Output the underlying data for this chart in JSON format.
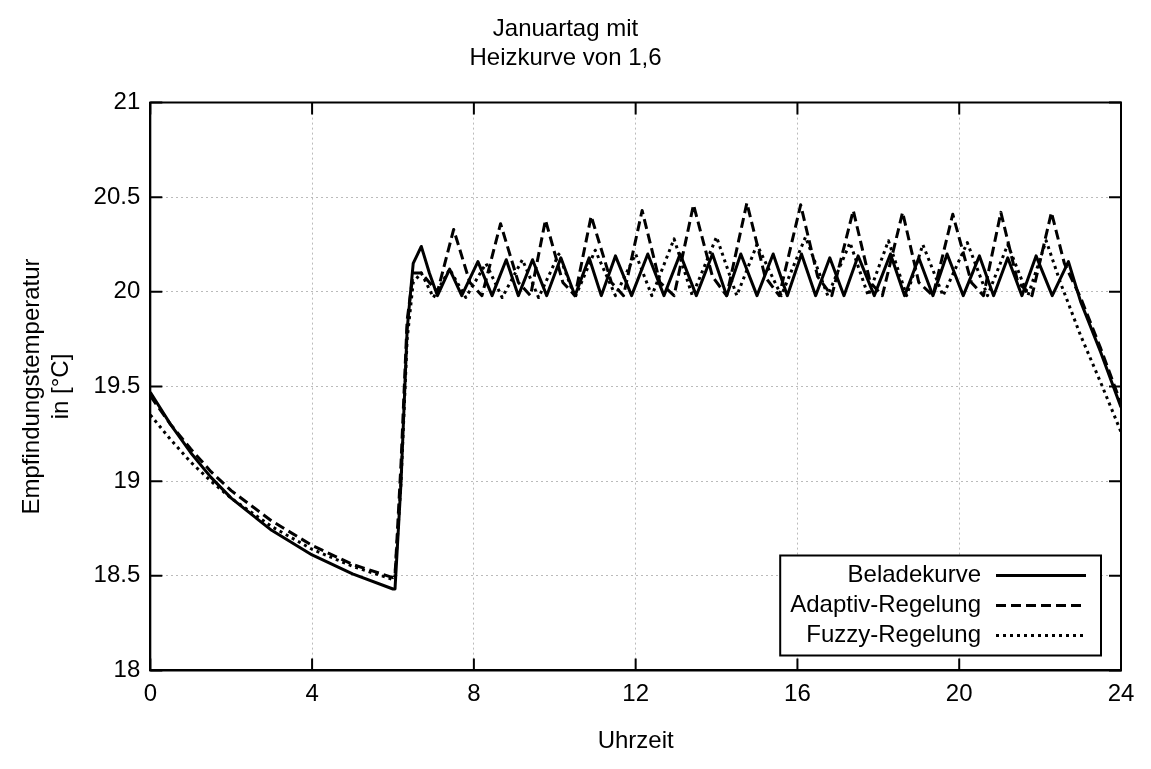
{
  "chart_data": {
    "type": "line",
    "title": "Januartag mit\nHeizkurve von 1,6",
    "xlabel": "Uhrzeit",
    "ylabel": "Empfindungstemperatur\nin [°C]",
    "xlim": [
      0,
      24
    ],
    "xticks": [
      0,
      4,
      8,
      12,
      16,
      20,
      24
    ],
    "ylim": [
      18,
      21
    ],
    "yticks": [
      18,
      18.5,
      19,
      19.5,
      20,
      20.5,
      21
    ],
    "grid": true,
    "legend": "bottom right",
    "marker": "none",
    "series": [
      {
        "name": "Beladekurve",
        "color": "#000000",
        "line_style": "solid",
        "x": [
          0,
          0.5,
          1,
          1.5,
          2,
          3,
          4,
          5,
          6,
          6.05,
          6.2,
          6.35,
          6.5,
          6.7,
          6.9,
          7.1,
          7.4,
          7.7,
          8.1,
          8.45,
          8.8,
          9.1,
          9.45,
          9.8,
          10.15,
          10.5,
          10.85,
          11.15,
          11.5,
          11.9,
          12.3,
          12.7,
          13.1,
          13.5,
          13.9,
          14.25,
          14.6,
          15,
          15.4,
          15.75,
          16.1,
          16.45,
          16.8,
          17.15,
          17.5,
          17.9,
          18.3,
          18.65,
          19,
          19.35,
          19.7,
          20.1,
          20.5,
          20.85,
          21.2,
          21.55,
          21.9,
          22.3,
          22.7,
          23,
          23.5,
          24
        ],
        "values": [
          19.47,
          19.3,
          19.15,
          19.02,
          18.91,
          18.74,
          18.61,
          18.51,
          18.43,
          18.43,
          19.0,
          19.8,
          20.15,
          20.24,
          20.1,
          19.98,
          20.12,
          19.98,
          20.16,
          19.98,
          20.17,
          19.98,
          20.17,
          19.98,
          20.18,
          19.98,
          20.18,
          19.98,
          20.19,
          19.98,
          20.2,
          19.98,
          20.2,
          19.98,
          20.2,
          19.98,
          20.2,
          19.98,
          20.2,
          19.98,
          20.2,
          19.98,
          20.18,
          19.98,
          20.19,
          19.98,
          20.2,
          19.98,
          20.18,
          19.98,
          20.2,
          19.98,
          20.19,
          19.98,
          20.18,
          19.98,
          20.19,
          19.98,
          20.16,
          19.95,
          19.68,
          19.39
        ]
      },
      {
        "name": "Adaptiv-Regelung",
        "color": "#000000",
        "line_style": "dashed",
        "x": [
          0,
          0.5,
          1,
          1.5,
          2,
          3,
          4,
          5,
          6,
          6.05,
          6.2,
          6.35,
          6.5,
          6.7,
          6.9,
          7.1,
          7.5,
          7.9,
          8.2,
          8.66,
          9.1,
          9.4,
          9.77,
          10.2,
          10.5,
          10.9,
          11.4,
          11.7,
          12.16,
          12.6,
          12.95,
          13.43,
          13.9,
          14.25,
          14.75,
          15.2,
          15.55,
          16.08,
          16.5,
          16.85,
          17.38,
          17.8,
          18.1,
          18.6,
          19.0,
          19.35,
          19.84,
          20.3,
          20.6,
          21.03,
          21.45,
          21.8,
          22.28,
          22.6,
          23,
          23.5,
          24
        ],
        "values": [
          19.45,
          19.3,
          19.17,
          19.05,
          18.95,
          18.79,
          18.66,
          18.56,
          18.49,
          18.5,
          19.1,
          19.85,
          20.1,
          20.1,
          20.05,
          20.0,
          20.33,
          20.05,
          19.98,
          20.36,
          20.05,
          19.98,
          20.38,
          20.05,
          19.98,
          20.4,
          20.05,
          19.98,
          20.43,
          20.05,
          19.98,
          20.46,
          20.08,
          19.98,
          20.47,
          20.08,
          19.98,
          20.46,
          20.08,
          19.98,
          20.43,
          20.05,
          19.98,
          20.42,
          20.05,
          19.98,
          20.41,
          20.05,
          19.98,
          20.42,
          20.05,
          19.98,
          20.42,
          20.15,
          19.97,
          19.7,
          19.41
        ]
      },
      {
        "name": "Fuzzy-Regelung",
        "color": "#000000",
        "line_style": "dotted",
        "x": [
          0,
          0.5,
          1,
          1.5,
          2,
          3,
          4,
          5,
          6,
          6.05,
          6.2,
          6.35,
          6.5,
          6.7,
          7.0,
          7.4,
          7.8,
          8.3,
          8.7,
          9.2,
          9.6,
          10.1,
          10.5,
          11.0,
          11.5,
          12.0,
          12.4,
          12.95,
          13.4,
          14.0,
          14.5,
          15.0,
          15.6,
          16.2,
          16.75,
          17.3,
          17.75,
          18.25,
          18.7,
          19.1,
          19.6,
          20.2,
          20.7,
          21.2,
          21.7,
          22.15,
          22.5,
          23,
          23.5,
          24
        ],
        "values": [
          19.35,
          19.22,
          19.1,
          19.0,
          18.91,
          18.76,
          18.64,
          18.55,
          18.48,
          18.5,
          19.0,
          19.75,
          20.05,
          20.1,
          19.97,
          20.12,
          19.97,
          20.15,
          19.97,
          20.17,
          19.97,
          20.2,
          19.97,
          20.22,
          19.98,
          20.2,
          19.98,
          20.28,
          19.98,
          20.29,
          19.98,
          20.25,
          19.98,
          20.29,
          19.98,
          20.26,
          19.98,
          20.27,
          19.98,
          20.25,
          19.98,
          20.26,
          19.98,
          20.25,
          19.98,
          20.27,
          20.05,
          19.77,
          19.52,
          19.26
        ]
      }
    ]
  }
}
